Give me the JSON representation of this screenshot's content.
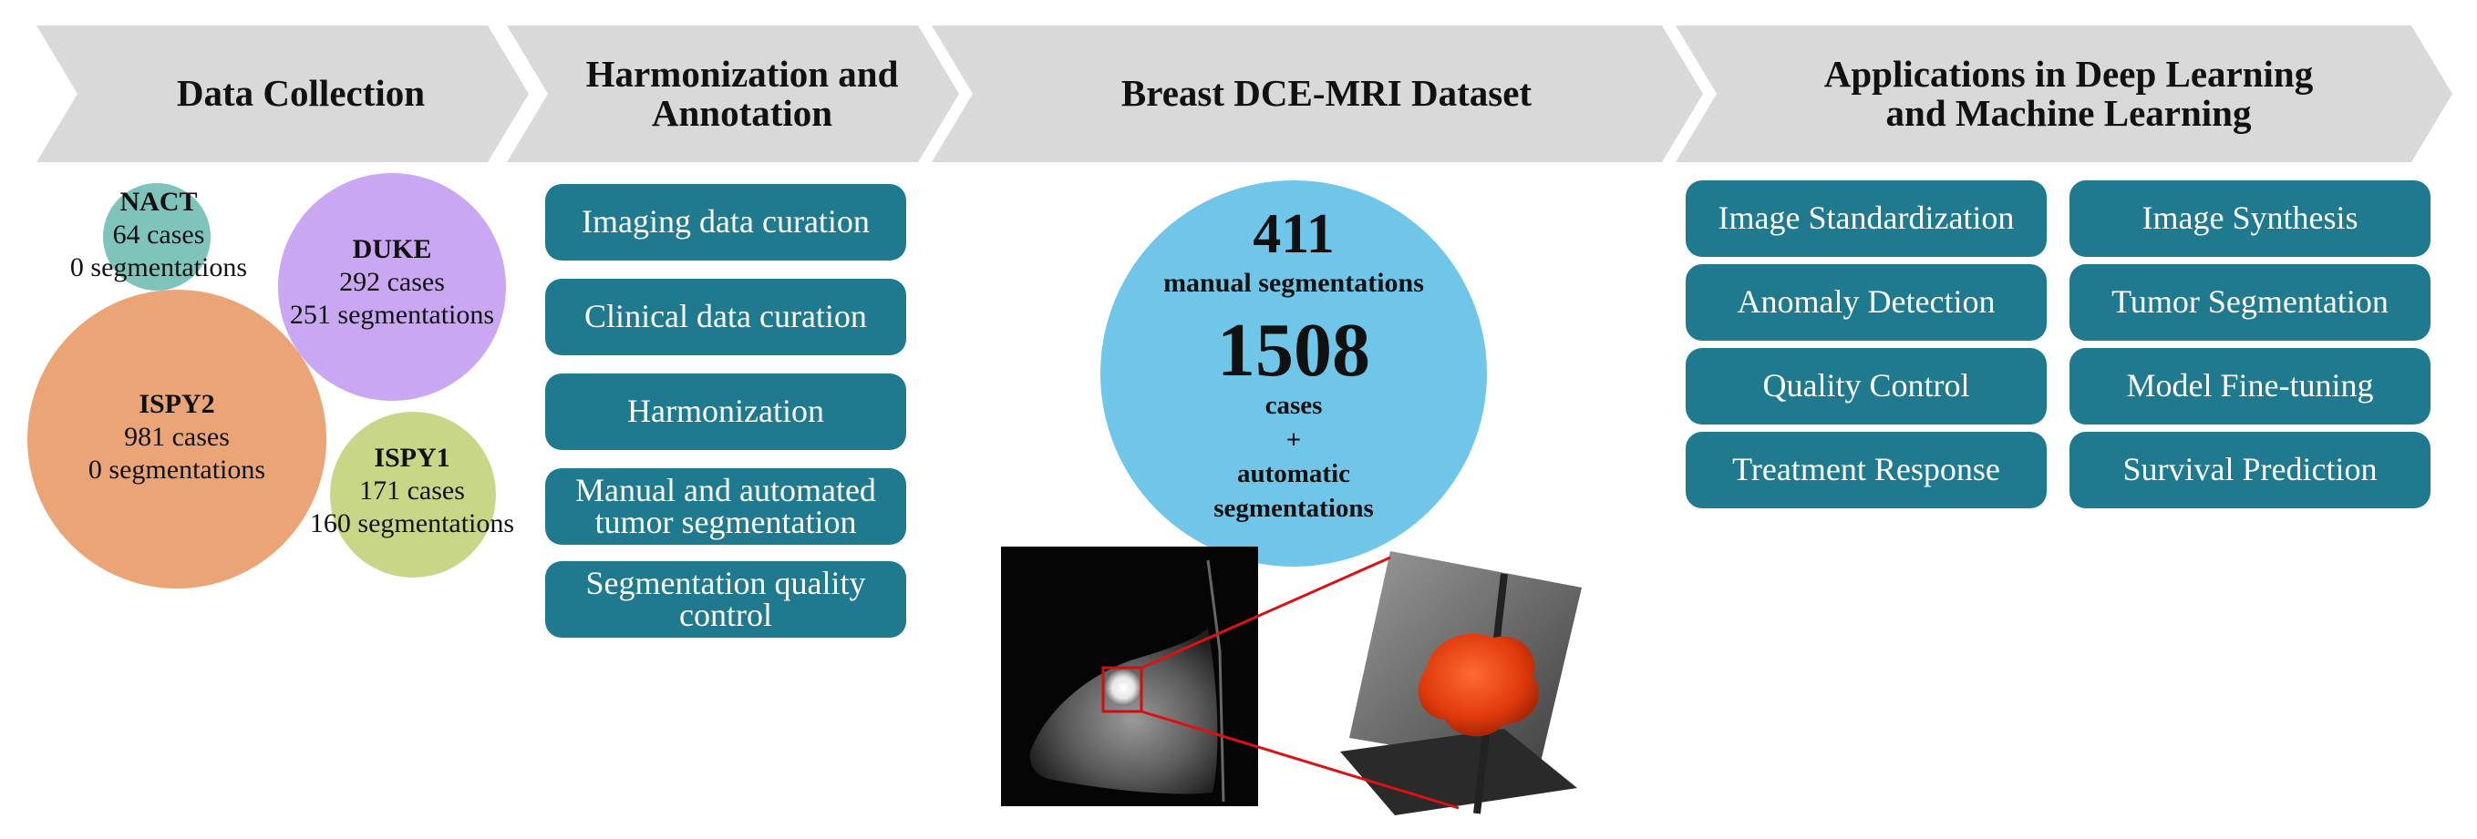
{
  "colors": {
    "banner": "#d9d9d9",
    "pill": "#1f7a8f",
    "nact": "#7ec4bb",
    "duke": "#c9a7f2",
    "ispy2": "#eba475",
    "ispy1": "#c7d787",
    "dataset_circle": "#6fc6e9",
    "connector": "#dd1111"
  },
  "stages": [
    {
      "title_lines": [
        "Data Collection"
      ]
    },
    {
      "title_lines": [
        "Harmonization and",
        "Annotation"
      ]
    },
    {
      "title_lines": [
        "Breast DCE-MRI Dataset"
      ]
    },
    {
      "title_lines": [
        "Applications in Deep Learning",
        "and Machine Learning"
      ]
    }
  ],
  "sources": [
    {
      "name": "NACT",
      "cases": "64 cases",
      "segmentations": "0 segmentations"
    },
    {
      "name": "DUKE",
      "cases": "292 cases",
      "segmentations": "251 segmentations"
    },
    {
      "name": "ISPY2",
      "cases": "981 cases",
      "segmentations": "0 segmentations"
    },
    {
      "name": "ISPY1",
      "cases": "171 cases",
      "segmentations": "160 segmentations"
    }
  ],
  "harmonization_steps": [
    {
      "lines": [
        "Imaging data curation"
      ]
    },
    {
      "lines": [
        "Clinical data curation"
      ]
    },
    {
      "lines": [
        "Harmonization"
      ]
    },
    {
      "lines": [
        "Manual and automated",
        "tumor segmentation"
      ]
    },
    {
      "lines": [
        "Segmentation quality",
        "control"
      ]
    }
  ],
  "dataset": {
    "manual_count": "411",
    "manual_label": "manual segmentations",
    "case_count": "1508",
    "cases_label": "cases",
    "plus": "+",
    "auto_label_1": "automatic",
    "auto_label_2": "segmentations"
  },
  "applications": [
    "Image Standardization",
    "Image Synthesis",
    "Anomaly Detection",
    "Tumor Segmentation",
    "Quality Control",
    "Model Fine-tuning",
    "Treatment Response",
    "Survival Prediction"
  ]
}
